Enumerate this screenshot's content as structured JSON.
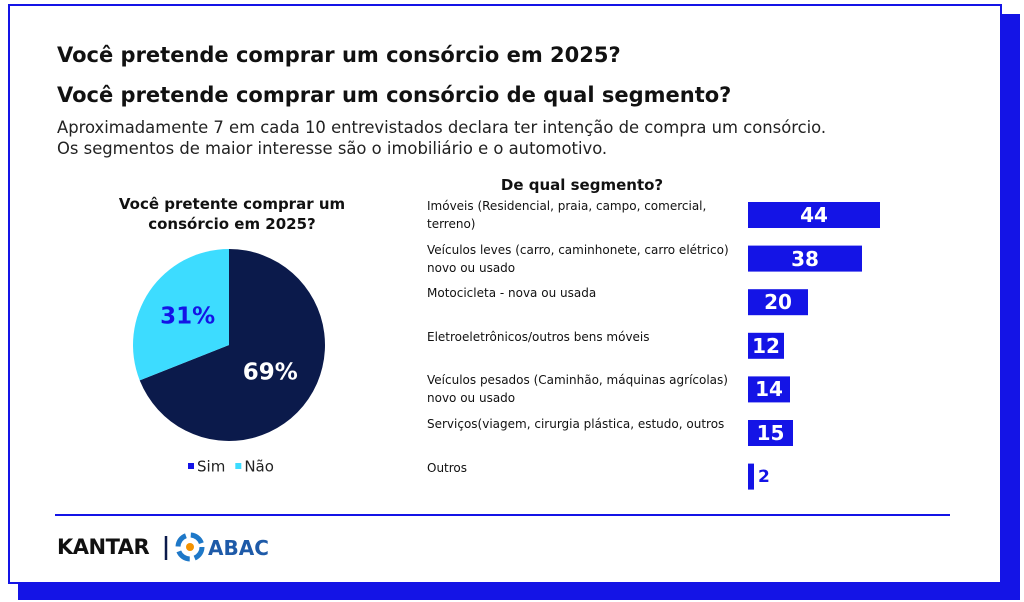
{
  "header": {
    "title": "Você pretende comprar um consórcio em 2025?",
    "subtitle": "Você pretende comprar um consórcio de qual segmento?",
    "text": [
      "Aproximadamente 7 em cada 10 entrevistados declara ter intenção de compra um consórcio.",
      "Os segmentos de maior interesse são o imobiliário e o automotivo."
    ]
  },
  "chart_data": [
    {
      "type": "pie",
      "title": "Você pretente comprar um consórcio em 2025?",
      "categories": [
        "Sim",
        "Não"
      ],
      "values": [
        69,
        31
      ],
      "value_labels": [
        "69%",
        "31%"
      ],
      "colors": [
        "#0b1a4b",
        "#3ddcff"
      ],
      "legend": "bottom"
    },
    {
      "type": "bar",
      "orientation": "horizontal",
      "title": "De qual segmento?",
      "categories": [
        "Imóveis (Residencial, praia, campo, comercial, terreno)",
        "Veículos leves (carro, caminhonete, carro elétrico) novo ou usado",
        "Motocicleta - nova ou usada",
        "Eletroeletrônicos/outros bens móveis",
        "Veículos pesados (Caminhão, máquinas agrícolas) novo ou usado",
        "Serviços(viagem, cirurgia plástica, estudo, outros",
        "Outros"
      ],
      "values": [
        44,
        38,
        20,
        12,
        14,
        15,
        2
      ],
      "color": "#1414e6"
    }
  ],
  "footer": {
    "brand": "KANTAR",
    "partner": "ABAC"
  }
}
